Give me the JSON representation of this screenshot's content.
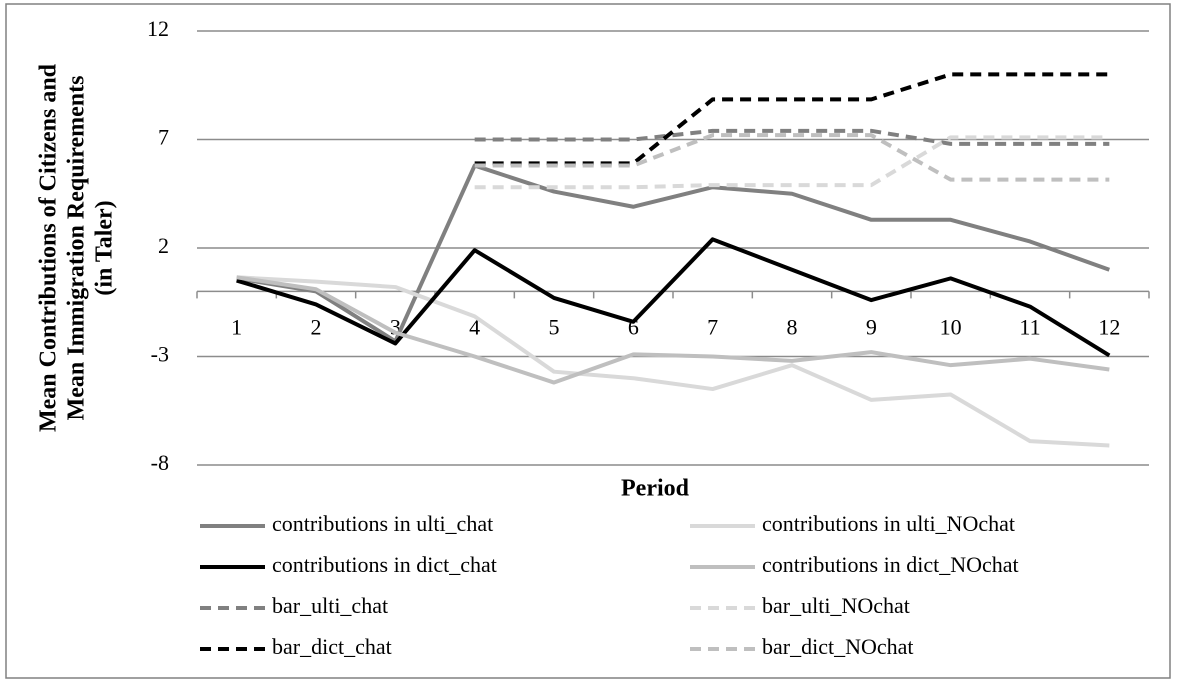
{
  "chart_data": {
    "type": "line",
    "y_label": [
      "Mean Contributions of Citizens and",
      "Mean Immigration Requirements",
      "(in Taler)"
    ],
    "x_label": "Period",
    "categories": [
      "1",
      "2",
      "3",
      "4",
      "5",
      "6",
      "7",
      "8",
      "9",
      "10",
      "11",
      "12"
    ],
    "ylim": [
      -8,
      12
    ],
    "yticks": [
      -8,
      -3,
      2,
      7,
      12
    ],
    "grid": true,
    "series": [
      {
        "name": "contributions in ulti_chat",
        "color": "#808080",
        "dashed": false,
        "values": [
          0.6,
          0.0,
          -2.3,
          5.8,
          4.6,
          3.9,
          4.8,
          4.5,
          3.3,
          3.3,
          2.3,
          1.0
        ]
      },
      {
        "name": "contributions in ulti_NOchat",
        "color": "#d9d9d9",
        "dashed": false,
        "values": [
          0.65,
          0.45,
          0.2,
          -1.15,
          -3.7,
          -4.0,
          -4.5,
          -3.4,
          -5.0,
          -4.75,
          -6.9,
          -7.1
        ]
      },
      {
        "name": "contributions in dict_chat",
        "color": "#000000",
        "dashed": false,
        "values": [
          0.5,
          -0.6,
          -2.4,
          1.9,
          -0.3,
          -1.4,
          2.4,
          1.0,
          -0.4,
          0.6,
          -0.7,
          -2.95
        ]
      },
      {
        "name": "contributions in dict_NOchat",
        "color": "#bfbfbf",
        "dashed": false,
        "values": [
          0.65,
          0.1,
          -1.9,
          -3.0,
          -4.2,
          -2.9,
          -3.0,
          -3.2,
          -2.8,
          -3.4,
          -3.1,
          -3.6
        ]
      },
      {
        "name": "bar_ulti_chat",
        "color": "#808080",
        "dashed": true,
        "values": [
          null,
          null,
          null,
          7.0,
          7.0,
          7.0,
          7.4,
          7.4,
          7.4,
          6.8,
          6.8,
          6.8
        ]
      },
      {
        "name": "bar_ulti_NOchat",
        "color": "#d9d9d9",
        "dashed": true,
        "values": [
          null,
          null,
          null,
          4.8,
          4.8,
          4.8,
          4.9,
          4.9,
          4.9,
          7.1,
          7.1,
          7.1
        ]
      },
      {
        "name": "bar_dict_chat",
        "color": "#000000",
        "dashed": true,
        "values": [
          null,
          null,
          null,
          5.9,
          5.9,
          5.9,
          8.85,
          8.85,
          8.85,
          10.0,
          10.0,
          10.0
        ]
      },
      {
        "name": "bar_dict_NOchat",
        "color": "#bfbfbf",
        "dashed": true,
        "values": [
          null,
          null,
          null,
          5.8,
          5.8,
          5.8,
          7.2,
          7.2,
          7.2,
          5.15,
          5.15,
          5.15
        ]
      }
    ]
  }
}
